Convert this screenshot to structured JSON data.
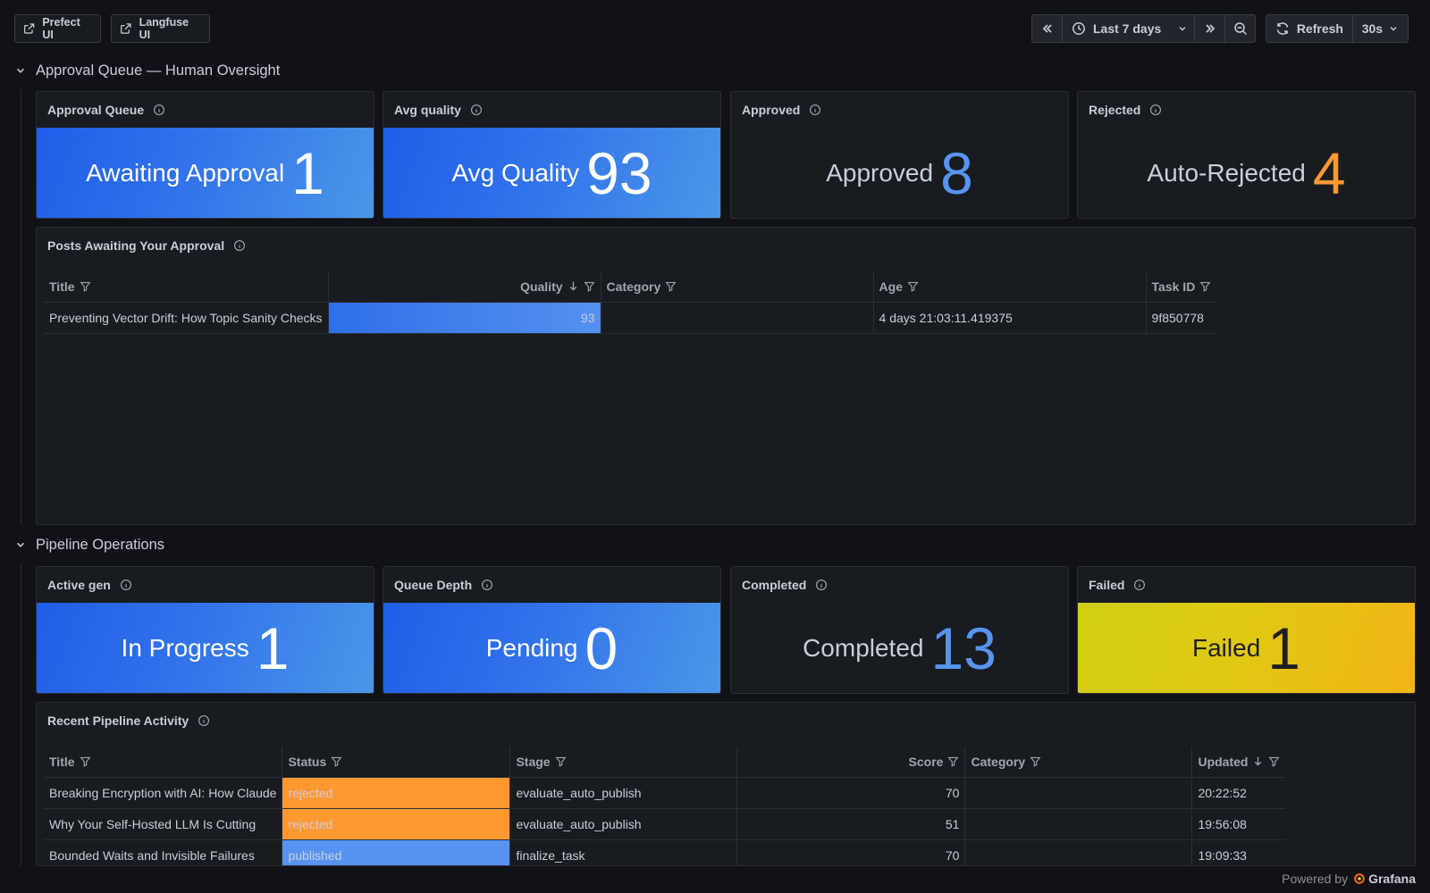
{
  "toolbar": {
    "prefect_label": "Prefect UI",
    "langfuse_label": "Langfuse UI",
    "time_range": "Last 7 days",
    "refresh_label": "Refresh",
    "refresh_interval": "30s"
  },
  "rows": {
    "approval": "Approval Queue — Human Oversight",
    "pipeline": "Pipeline Operations"
  },
  "approval_stats": [
    {
      "title": "Approval Queue",
      "label": "Awaiting Approval",
      "value": "1",
      "style": "blue"
    },
    {
      "title": "Avg quality",
      "label": "Avg Quality",
      "value": "93",
      "style": "blue"
    },
    {
      "title": "Approved",
      "label": "Approved",
      "value": "8",
      "style": "plain",
      "value_color": "#5794f2"
    },
    {
      "title": "Rejected",
      "label": "Auto-Rejected",
      "value": "4",
      "style": "plain",
      "value_color": "#ff9830"
    }
  ],
  "approval_table": {
    "title": "Posts Awaiting Your Approval",
    "columns": [
      "Title",
      "Quality",
      "Category",
      "Age",
      "Task ID"
    ],
    "rows": [
      {
        "title": "Preventing Vector Drift: How Topic Sanity Checks",
        "quality": "93",
        "quality_fraction": 1.0,
        "category": "",
        "age": "4 days 21:03:11.419375",
        "task_id": "9f850778"
      }
    ]
  },
  "pipeline_stats": [
    {
      "title": "Active gen",
      "label": "In Progress",
      "value": "1",
      "style": "blue"
    },
    {
      "title": "Queue Depth",
      "label": "Pending",
      "value": "0",
      "style": "blue"
    },
    {
      "title": "Completed",
      "label": "Completed",
      "value": "13",
      "style": "plain",
      "value_color": "#5794f2"
    },
    {
      "title": "Failed",
      "label": "Failed",
      "value": "1",
      "style": "yellow"
    }
  ],
  "activity_table": {
    "title": "Recent Pipeline Activity",
    "columns": [
      "Title",
      "Status",
      "Stage",
      "Score",
      "Category",
      "Updated"
    ],
    "rows": [
      {
        "title": "Breaking Encryption with AI: How Claude",
        "status": "rejected",
        "stage": "evaluate_auto_publish",
        "score": "70",
        "category": "",
        "updated": "20:22:52"
      },
      {
        "title": "Why Your Self-Hosted LLM Is Cutting",
        "status": "rejected",
        "stage": "evaluate_auto_publish",
        "score": "51",
        "category": "",
        "updated": "19:56:08"
      },
      {
        "title": "Bounded Waits and Invisible Failures",
        "status": "published",
        "stage": "finalize_task",
        "score": "70",
        "category": "",
        "updated": "19:09:33"
      }
    ]
  },
  "footer": {
    "powered_by": "Powered by",
    "brand": "Grafana"
  },
  "colors": {
    "accent_blue": "#5794f2",
    "orange": "#ff9830",
    "link": "#6e9fff"
  }
}
